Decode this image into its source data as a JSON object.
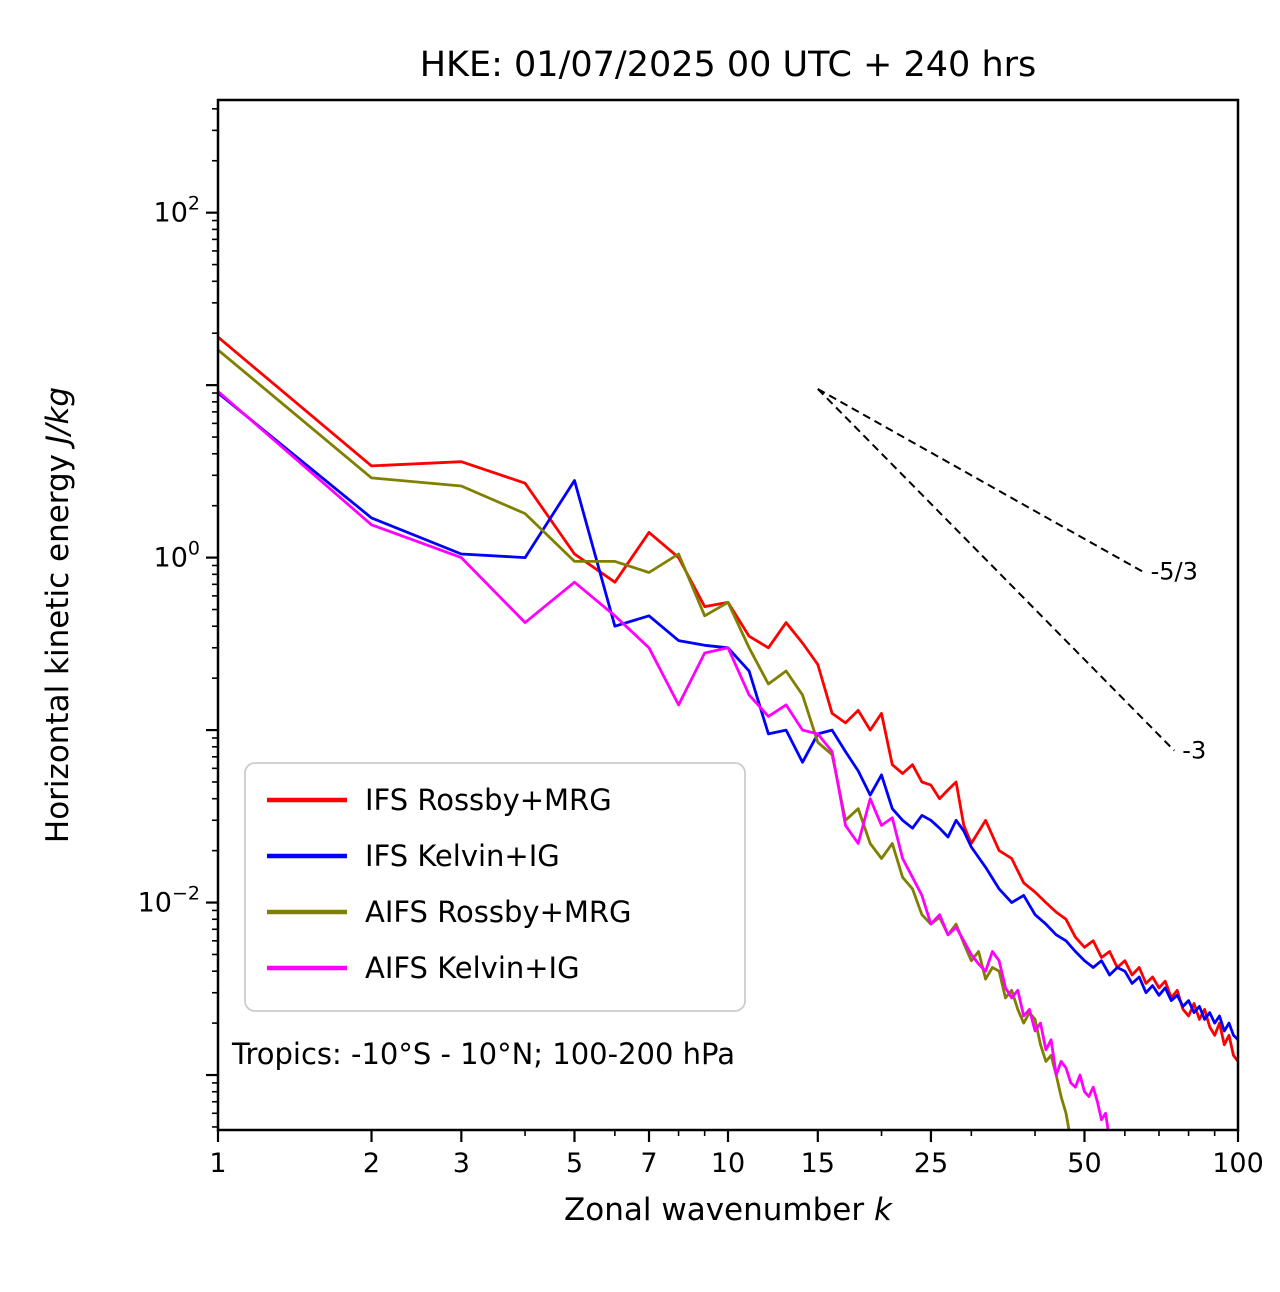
{
  "chart": {
    "title": "HKE: 01/07/2025 00 UTC + 240 hrs",
    "ylabel": {
      "prefix": "Horizontal kinetic energy ",
      "units": "J/kg"
    },
    "xlabel": {
      "prefix": "Zonal wavenumber ",
      "var": "k"
    },
    "annotation": "Tropics: -10°S - 10°N; 100-200 hPa"
  },
  "chart_data": {
    "type": "line",
    "x_scale": "log",
    "y_scale": "log",
    "xlim": [
      1,
      100
    ],
    "ylim": [
      0.00048,
      450
    ],
    "grid": false,
    "legend_position": "lower left",
    "xticks": {
      "major_values": [
        1,
        2,
        3,
        5,
        7,
        10,
        15,
        25,
        50,
        100
      ],
      "major_labels": [
        "1",
        "2",
        "3",
        "5",
        "7",
        "10",
        "15",
        "25",
        "50",
        "100"
      ],
      "minor_values": [
        4,
        6,
        8,
        9,
        20,
        30,
        40,
        60,
        70,
        80,
        90
      ]
    },
    "yticks": {
      "decade_exponents": [
        2,
        1,
        0,
        -1,
        -2,
        -3
      ],
      "labels": [
        {
          "value": 100,
          "base": "10",
          "exp": "2"
        },
        {
          "value": 1,
          "base": "10",
          "exp": "0"
        },
        {
          "value": 0.01,
          "base": "10",
          "exp": "−2"
        }
      ]
    },
    "series": [
      {
        "name": "IFS Rossby+MRG",
        "color": "#ff0000",
        "points": [
          [
            1,
            19
          ],
          [
            2,
            3.4
          ],
          [
            3,
            3.6
          ],
          [
            4,
            2.7
          ],
          [
            5,
            1.05
          ],
          [
            6,
            0.72
          ],
          [
            7,
            1.4
          ],
          [
            8,
            1.0
          ],
          [
            9,
            0.52
          ],
          [
            10,
            0.55
          ],
          [
            11,
            0.35
          ],
          [
            12,
            0.3
          ],
          [
            13,
            0.42
          ],
          [
            14,
            0.32
          ],
          [
            15,
            0.24
          ],
          [
            16,
            0.125
          ],
          [
            17,
            0.11
          ],
          [
            18,
            0.13
          ],
          [
            19,
            0.1
          ],
          [
            20,
            0.125
          ],
          [
            21,
            0.063
          ],
          [
            22,
            0.056
          ],
          [
            23,
            0.063
          ],
          [
            24,
            0.05
          ],
          [
            25,
            0.048
          ],
          [
            26,
            0.04
          ],
          [
            27,
            0.045
          ],
          [
            28,
            0.05
          ],
          [
            29,
            0.028
          ],
          [
            30,
            0.022
          ],
          [
            32,
            0.03
          ],
          [
            34,
            0.02
          ],
          [
            36,
            0.018
          ],
          [
            38,
            0.013
          ],
          [
            40,
            0.0115
          ],
          [
            42,
            0.01
          ],
          [
            44,
            0.0088
          ],
          [
            46,
            0.008
          ],
          [
            48,
            0.0063
          ],
          [
            50,
            0.0055
          ],
          [
            52,
            0.006
          ],
          [
            54,
            0.0048
          ],
          [
            56,
            0.0052
          ],
          [
            58,
            0.0042
          ],
          [
            60,
            0.0046
          ],
          [
            62,
            0.0038
          ],
          [
            64,
            0.0042
          ],
          [
            66,
            0.0034
          ],
          [
            68,
            0.0037
          ],
          [
            70,
            0.0032
          ],
          [
            72,
            0.0035
          ],
          [
            74,
            0.0028
          ],
          [
            76,
            0.0031
          ],
          [
            78,
            0.0024
          ],
          [
            80,
            0.0022
          ],
          [
            82,
            0.0026
          ],
          [
            84,
            0.0021
          ],
          [
            86,
            0.0024
          ],
          [
            88,
            0.0019
          ],
          [
            90,
            0.0017
          ],
          [
            92,
            0.002
          ],
          [
            94,
            0.0015
          ],
          [
            96,
            0.0017
          ],
          [
            98,
            0.0013
          ],
          [
            100,
            0.0012
          ]
        ]
      },
      {
        "name": "IFS Kelvin+IG",
        "color": "#0000ff",
        "points": [
          [
            1,
            9.0
          ],
          [
            2,
            1.7
          ],
          [
            3,
            1.05
          ],
          [
            4,
            1.0
          ],
          [
            5,
            2.8
          ],
          [
            6,
            0.4
          ],
          [
            7,
            0.46
          ],
          [
            8,
            0.33
          ],
          [
            9,
            0.31
          ],
          [
            10,
            0.3
          ],
          [
            11,
            0.22
          ],
          [
            12,
            0.095
          ],
          [
            13,
            0.1
          ],
          [
            14,
            0.065
          ],
          [
            15,
            0.095
          ],
          [
            16,
            0.1
          ],
          [
            17,
            0.075
          ],
          [
            18,
            0.058
          ],
          [
            19,
            0.042
          ],
          [
            20,
            0.055
          ],
          [
            21,
            0.035
          ],
          [
            22,
            0.03
          ],
          [
            23,
            0.027
          ],
          [
            24,
            0.032
          ],
          [
            25,
            0.03
          ],
          [
            26,
            0.027
          ],
          [
            27,
            0.024
          ],
          [
            28,
            0.03
          ],
          [
            29,
            0.026
          ],
          [
            30,
            0.021
          ],
          [
            32,
            0.016
          ],
          [
            34,
            0.012
          ],
          [
            36,
            0.01
          ],
          [
            38,
            0.011
          ],
          [
            40,
            0.0085
          ],
          [
            42,
            0.0075
          ],
          [
            44,
            0.0065
          ],
          [
            46,
            0.006
          ],
          [
            48,
            0.0052
          ],
          [
            50,
            0.0046
          ],
          [
            52,
            0.0042
          ],
          [
            54,
            0.0046
          ],
          [
            56,
            0.0038
          ],
          [
            58,
            0.0042
          ],
          [
            60,
            0.004
          ],
          [
            62,
            0.0034
          ],
          [
            64,
            0.0037
          ],
          [
            66,
            0.003
          ],
          [
            68,
            0.0033
          ],
          [
            70,
            0.0029
          ],
          [
            72,
            0.0032
          ],
          [
            74,
            0.0027
          ],
          [
            76,
            0.0029
          ],
          [
            78,
            0.0025
          ],
          [
            80,
            0.0027
          ],
          [
            82,
            0.0023
          ],
          [
            84,
            0.0025
          ],
          [
            86,
            0.0021
          ],
          [
            88,
            0.0023
          ],
          [
            90,
            0.002
          ],
          [
            92,
            0.0022
          ],
          [
            94,
            0.0018
          ],
          [
            96,
            0.002
          ],
          [
            98,
            0.0017
          ],
          [
            100,
            0.0016
          ]
        ]
      },
      {
        "name": "AIFS Rossby+MRG",
        "color": "#808000",
        "points": [
          [
            1,
            16
          ],
          [
            2,
            2.9
          ],
          [
            3,
            2.6
          ],
          [
            4,
            1.8
          ],
          [
            5,
            0.95
          ],
          [
            6,
            0.95
          ],
          [
            7,
            0.82
          ],
          [
            8,
            1.05
          ],
          [
            9,
            0.46
          ],
          [
            10,
            0.55
          ],
          [
            11,
            0.3
          ],
          [
            12,
            0.185
          ],
          [
            13,
            0.22
          ],
          [
            14,
            0.16
          ],
          [
            15,
            0.085
          ],
          [
            16,
            0.072
          ],
          [
            17,
            0.03
          ],
          [
            18,
            0.035
          ],
          [
            19,
            0.022
          ],
          [
            20,
            0.018
          ],
          [
            21,
            0.022
          ],
          [
            22,
            0.014
          ],
          [
            23,
            0.012
          ],
          [
            24,
            0.0085
          ],
          [
            25,
            0.0075
          ],
          [
            26,
            0.0082
          ],
          [
            27,
            0.0065
          ],
          [
            28,
            0.0075
          ],
          [
            29,
            0.0058
          ],
          [
            30,
            0.0046
          ],
          [
            31,
            0.0052
          ],
          [
            32,
            0.0036
          ],
          [
            33,
            0.0042
          ],
          [
            34,
            0.004
          ],
          [
            35,
            0.0028
          ],
          [
            36,
            0.0031
          ],
          [
            37,
            0.0024
          ],
          [
            38,
            0.002
          ],
          [
            39,
            0.0023
          ],
          [
            40,
            0.0021
          ],
          [
            41,
            0.0015
          ],
          [
            42,
            0.0012
          ],
          [
            43,
            0.0013
          ],
          [
            44,
            0.001
          ],
          [
            45,
            0.00075
          ],
          [
            46,
            0.0006
          ],
          [
            47,
            0.00042
          ]
        ]
      },
      {
        "name": "AIFS Kelvin+IG",
        "color": "#ff00ff",
        "points": [
          [
            1,
            9.2
          ],
          [
            2,
            1.55
          ],
          [
            3,
            1.0
          ],
          [
            4,
            0.42
          ],
          [
            5,
            0.72
          ],
          [
            6,
            0.46
          ],
          [
            7,
            0.3
          ],
          [
            8,
            0.14
          ],
          [
            9,
            0.28
          ],
          [
            10,
            0.3
          ],
          [
            11,
            0.16
          ],
          [
            12,
            0.12
          ],
          [
            13,
            0.14
          ],
          [
            14,
            0.1
          ],
          [
            15,
            0.095
          ],
          [
            16,
            0.075
          ],
          [
            17,
            0.028
          ],
          [
            18,
            0.022
          ],
          [
            19,
            0.04
          ],
          [
            20,
            0.028
          ],
          [
            21,
            0.031
          ],
          [
            22,
            0.018
          ],
          [
            23,
            0.014
          ],
          [
            24,
            0.011
          ],
          [
            25,
            0.0075
          ],
          [
            26,
            0.0085
          ],
          [
            27,
            0.0065
          ],
          [
            28,
            0.0072
          ],
          [
            29,
            0.006
          ],
          [
            30,
            0.005
          ],
          [
            31,
            0.0044
          ],
          [
            32,
            0.004
          ],
          [
            33,
            0.0052
          ],
          [
            34,
            0.0046
          ],
          [
            35,
            0.0032
          ],
          [
            36,
            0.0028
          ],
          [
            37,
            0.0031
          ],
          [
            38,
            0.0022
          ],
          [
            39,
            0.0024
          ],
          [
            40,
            0.0018
          ],
          [
            41,
            0.002
          ],
          [
            42,
            0.0014
          ],
          [
            43,
            0.0016
          ],
          [
            44,
            0.001
          ],
          [
            45,
            0.0012
          ],
          [
            46,
            0.0011
          ],
          [
            47,
            0.0009
          ],
          [
            48,
            0.00085
          ],
          [
            49,
            0.001
          ],
          [
            50,
            0.0008
          ],
          [
            51,
            0.00075
          ],
          [
            52,
            0.00085
          ],
          [
            53,
            0.0007
          ],
          [
            54,
            0.00055
          ],
          [
            55,
            0.0006
          ],
          [
            56,
            0.00042
          ]
        ]
      }
    ],
    "ref_lines": [
      {
        "label": "-5/3",
        "x": [
          15,
          65
        ],
        "y": [
          9.5,
          0.83
        ]
      },
      {
        "label": "-3",
        "x": [
          15,
          75
        ],
        "y": [
          9.5,
          0.076
        ]
      }
    ]
  }
}
